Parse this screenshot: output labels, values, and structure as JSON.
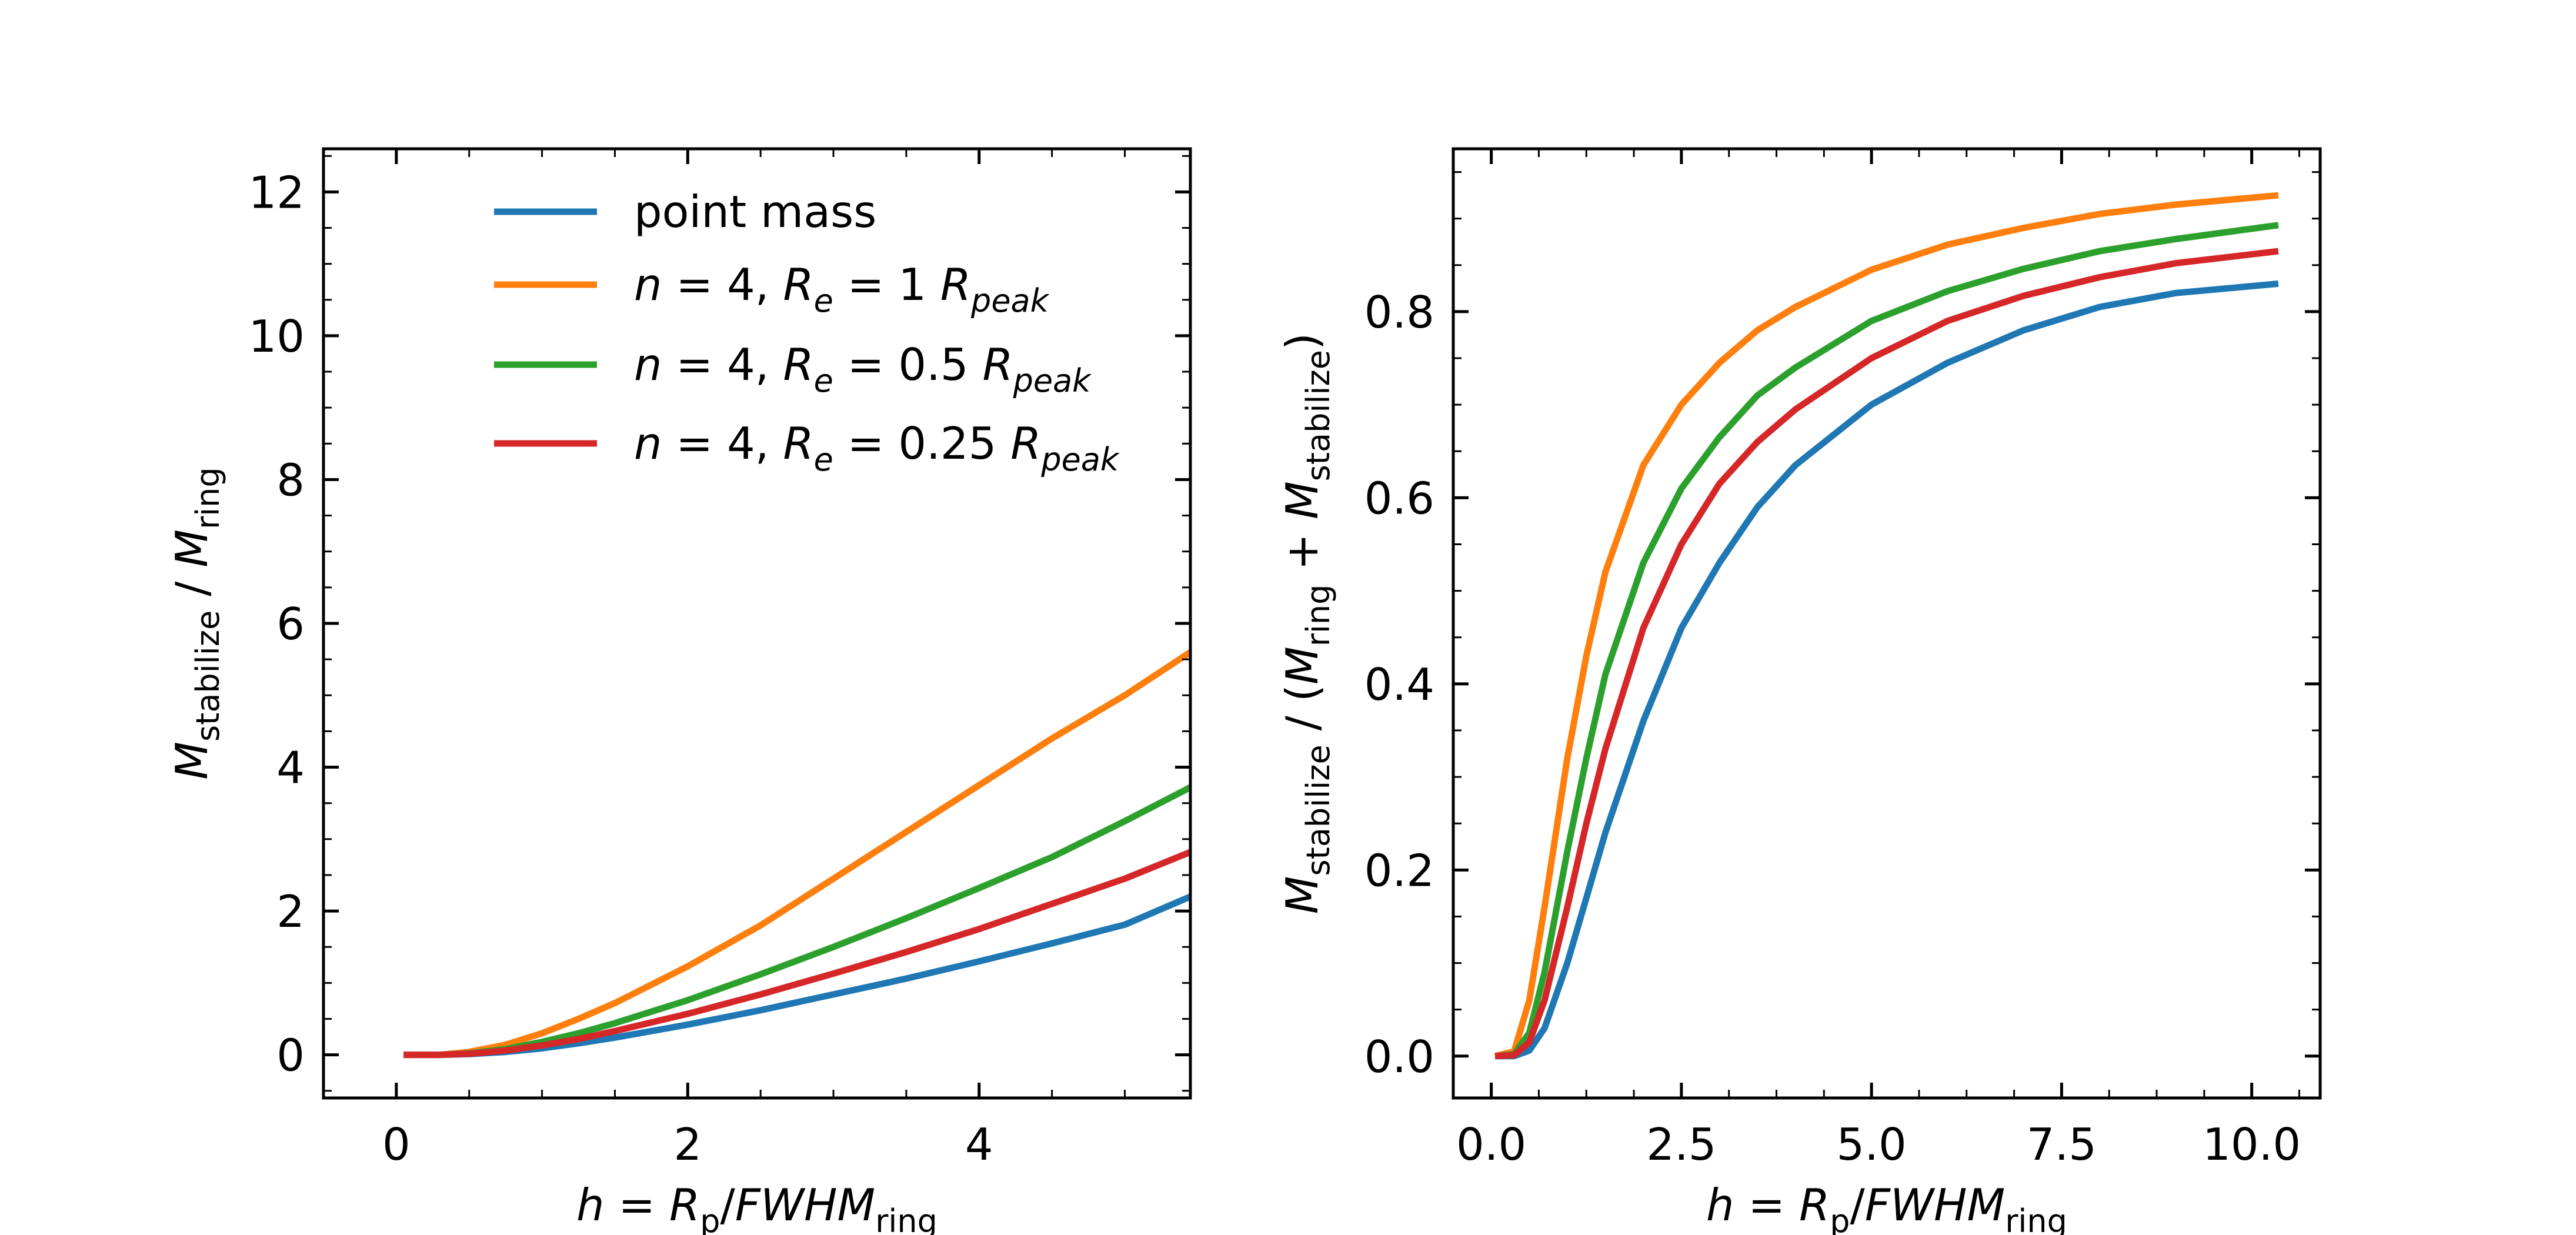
{
  "chart_data": [
    {
      "type": "line",
      "panel": "left",
      "xlabel": {
        "lhs": "h",
        "eq": " = ",
        "num": "R",
        "num_sub": "p",
        "slash": "/",
        "den": "FWHM",
        "den_sub": "ring"
      },
      "ylabel": {
        "num": "M",
        "num_sub": "stabilize",
        "slash": " / ",
        "den": "M",
        "den_sub": "ring"
      },
      "xlim": [
        -0.5,
        5.45
      ],
      "ylim": [
        -0.6,
        12.6
      ],
      "xticks": [
        0,
        2,
        4
      ],
      "yticks": [
        0,
        2,
        4,
        6,
        8,
        10,
        12
      ],
      "legend_position": "upper-left",
      "series": [
        {
          "name": "point mass",
          "legend": {
            "text": "point mass"
          },
          "color": "#1f77b4",
          "x": [
            0.05,
            0.3,
            0.5,
            0.75,
            1.0,
            1.25,
            1.5,
            2.0,
            2.5,
            3.0,
            3.5,
            4.0,
            4.5,
            5.0,
            5.45
          ],
          "y": [
            0,
            0,
            0.01,
            0.04,
            0.09,
            0.16,
            0.24,
            0.42,
            0.62,
            0.84,
            1.06,
            1.3,
            1.55,
            1.81,
            2.2
          ]
        },
        {
          "name": "n = 4, R_e = 1 R_peak",
          "legend": {
            "n": "n",
            "eq1": " = 4, ",
            "r": "R",
            "r_sub": "e",
            "eq2": " = 1 ",
            "rp": "R",
            "rp_sub": "peak"
          },
          "color": "#ff7f0e",
          "x": [
            0.05,
            0.3,
            0.5,
            0.75,
            1.0,
            1.25,
            1.5,
            2.0,
            2.5,
            3.0,
            3.5,
            4.0,
            4.5,
            5.0,
            5.45
          ],
          "y": [
            0,
            0,
            0.04,
            0.14,
            0.3,
            0.5,
            0.72,
            1.23,
            1.8,
            2.45,
            3.1,
            3.75,
            4.4,
            5.0,
            5.6
          ]
        },
        {
          "name": "n = 4, R_e = 0.5 R_peak",
          "legend": {
            "n": "n",
            "eq1": " = 4, ",
            "r": "R",
            "r_sub": "e",
            "eq2": " = 0.5 ",
            "rp": "R",
            "rp_sub": "peak"
          },
          "color": "#2ca02c",
          "x": [
            0.05,
            0.3,
            0.5,
            0.75,
            1.0,
            1.25,
            1.5,
            2.0,
            2.5,
            3.0,
            3.5,
            4.0,
            4.5,
            5.0,
            5.45
          ],
          "y": [
            0,
            0,
            0.02,
            0.08,
            0.18,
            0.3,
            0.44,
            0.76,
            1.12,
            1.5,
            1.9,
            2.32,
            2.75,
            3.25,
            3.72
          ]
        },
        {
          "name": "n = 4, R_e = 0.25 R_peak",
          "legend": {
            "n": "n",
            "eq1": " = 4, ",
            "r": "R",
            "r_sub": "e",
            "eq2": " = 0.25 ",
            "rp": "R",
            "rp_sub": "peak"
          },
          "color": "#d62728",
          "x": [
            0.05,
            0.3,
            0.5,
            0.75,
            1.0,
            1.25,
            1.5,
            2.0,
            2.5,
            3.0,
            3.5,
            4.0,
            4.5,
            5.0,
            5.45
          ],
          "y": [
            0,
            0,
            0.015,
            0.06,
            0.13,
            0.22,
            0.33,
            0.57,
            0.84,
            1.13,
            1.43,
            1.75,
            2.1,
            2.45,
            2.82
          ]
        }
      ]
    },
    {
      "type": "line",
      "panel": "right",
      "xlabel": {
        "lhs": "h",
        "eq": " = ",
        "num": "R",
        "num_sub": "p",
        "slash": "/",
        "den": "FWHM",
        "den_sub": "ring"
      },
      "ylabel": {
        "num": "M",
        "num_sub": "stabilize",
        "mid": " / (",
        "a": "M",
        "a_sub": "ring",
        "plus": " + ",
        "b": "M",
        "b_sub": "stabilize",
        "close": ")"
      },
      "xlim": [
        -0.5,
        10.9
      ],
      "ylim": [
        -0.045,
        0.975
      ],
      "xticks": [
        0.0,
        2.5,
        5.0,
        7.5,
        10.0
      ],
      "xtick_labels": [
        "0.0",
        "2.5",
        "5.0",
        "7.5",
        "10.0"
      ],
      "yticks": [
        0.0,
        0.2,
        0.4,
        0.6,
        0.8
      ],
      "ytick_labels": [
        "0.0",
        "0.2",
        "0.4",
        "0.6",
        "0.8"
      ],
      "series": [
        {
          "name": "point mass",
          "color": "#1f77b4",
          "x": [
            0.05,
            0.3,
            0.5,
            0.7,
            1.0,
            1.25,
            1.5,
            2.0,
            2.5,
            3.0,
            3.5,
            4.0,
            5.0,
            6.0,
            7.0,
            8.0,
            9.0,
            10.35
          ],
          "y": [
            0,
            0,
            0.006,
            0.03,
            0.1,
            0.17,
            0.24,
            0.36,
            0.46,
            0.53,
            0.59,
            0.635,
            0.7,
            0.745,
            0.78,
            0.805,
            0.82,
            0.83
          ]
        },
        {
          "name": "n = 4, R_e = 1 R_peak",
          "color": "#ff7f0e",
          "x": [
            0.05,
            0.3,
            0.5,
            0.7,
            1.0,
            1.25,
            1.5,
            2.0,
            2.5,
            3.0,
            3.5,
            4.0,
            5.0,
            6.0,
            7.0,
            8.0,
            9.0,
            10.35
          ],
          "y": [
            0,
            0.005,
            0.06,
            0.16,
            0.32,
            0.43,
            0.52,
            0.635,
            0.7,
            0.745,
            0.78,
            0.805,
            0.845,
            0.872,
            0.89,
            0.905,
            0.915,
            0.925
          ]
        },
        {
          "name": "n = 4, R_e = 0.5 R_peak",
          "color": "#2ca02c",
          "x": [
            0.05,
            0.3,
            0.5,
            0.7,
            1.0,
            1.25,
            1.5,
            2.0,
            2.5,
            3.0,
            3.5,
            4.0,
            5.0,
            6.0,
            7.0,
            8.0,
            9.0,
            10.35
          ],
          "y": [
            0,
            0.002,
            0.025,
            0.09,
            0.22,
            0.32,
            0.41,
            0.53,
            0.61,
            0.665,
            0.71,
            0.74,
            0.79,
            0.822,
            0.846,
            0.865,
            0.878,
            0.893
          ]
        },
        {
          "name": "n = 4, R_e = 0.25 R_peak",
          "color": "#d62728",
          "x": [
            0.05,
            0.3,
            0.5,
            0.7,
            1.0,
            1.25,
            1.5,
            2.0,
            2.5,
            3.0,
            3.5,
            4.0,
            5.0,
            6.0,
            7.0,
            8.0,
            9.0,
            10.35
          ],
          "y": [
            0,
            0.001,
            0.015,
            0.06,
            0.16,
            0.25,
            0.33,
            0.46,
            0.55,
            0.615,
            0.66,
            0.695,
            0.75,
            0.79,
            0.817,
            0.837,
            0.852,
            0.865
          ]
        }
      ]
    }
  ]
}
